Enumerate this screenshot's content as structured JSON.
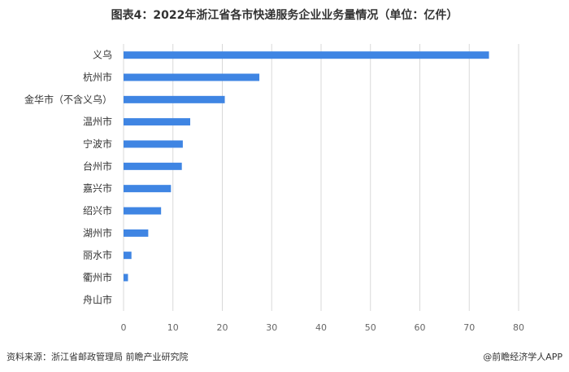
{
  "title": "图表4：2022年浙江省各市快递服务企业业务量情况（单位：亿件）",
  "source": "资料来源：浙江省邮政管理局 前瞻产业研究院",
  "brand": "@前瞻经济学人APP",
  "colors": {
    "bar": "#3f85e3",
    "grid": "#d9d9d9"
  },
  "chart_data": {
    "type": "bar",
    "orientation": "horizontal",
    "categories": [
      "义乌",
      "杭州市",
      "金华市（不含义乌）",
      "温州市",
      "宁波市",
      "台州市",
      "嘉兴市",
      "绍兴市",
      "湖州市",
      "丽水市",
      "衢州市",
      "舟山市"
    ],
    "values": [
      74,
      27.5,
      20.5,
      13.5,
      12,
      11.8,
      9.6,
      7.6,
      5,
      1.6,
      0.9,
      0
    ],
    "xlim": [
      0,
      80
    ],
    "xticks": [
      0,
      10,
      20,
      30,
      40,
      50,
      60,
      70,
      80
    ],
    "grid": true,
    "unit": "亿件"
  }
}
